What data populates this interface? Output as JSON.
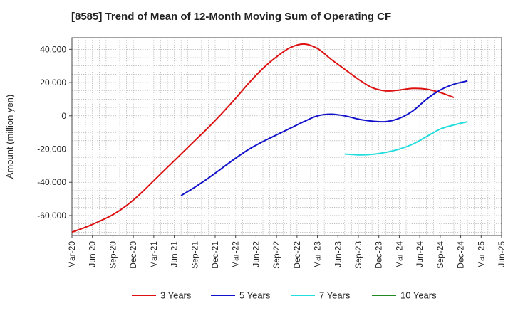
{
  "chart_data": {
    "type": "line",
    "title": "[8585]  Trend of Mean of 12-Month Moving Sum of Operating CF",
    "xlabel": "",
    "ylabel": "Amount (million yen)",
    "ylim": [
      -72000,
      47000
    ],
    "yticks": [
      40000,
      20000,
      0,
      -20000,
      -40000,
      -60000
    ],
    "ytick_labels": [
      "40,000",
      "20,000",
      "0",
      "-20,000",
      "-40,000",
      "-60,000"
    ],
    "x_tick_labels": [
      "Mar-20",
      "Jun-20",
      "Sep-20",
      "Dec-20",
      "Mar-21",
      "Jun-21",
      "Sep-21",
      "Dec-21",
      "Mar-22",
      "Jun-22",
      "Sep-22",
      "Dec-22",
      "Mar-23",
      "Jun-23",
      "Sep-23",
      "Dec-23",
      "Mar-24",
      "Jun-24",
      "Sep-24",
      "Dec-24",
      "Mar-25",
      "Jun-25"
    ],
    "grid": true,
    "legend_position": "bottom",
    "series": [
      {
        "name": "3 Years",
        "color": "#dd1111",
        "points": [
          [
            0,
            -70000
          ],
          [
            1,
            -67000
          ],
          [
            2,
            -63500
          ],
          [
            3,
            -59500
          ],
          [
            4,
            -54000
          ],
          [
            5,
            -47000
          ],
          [
            6,
            -39000
          ],
          [
            7,
            -31000
          ],
          [
            8,
            -23000
          ],
          [
            9,
            -15000
          ],
          [
            10,
            -7000
          ],
          [
            11,
            1500
          ],
          [
            12,
            10500
          ],
          [
            13,
            20000
          ],
          [
            14,
            28500
          ],
          [
            15,
            35500
          ],
          [
            16,
            41000
          ],
          [
            17,
            43200
          ],
          [
            18,
            40500
          ],
          [
            19,
            34000
          ],
          [
            20,
            28000
          ],
          [
            21,
            22000
          ],
          [
            22,
            17000
          ],
          [
            23,
            15000
          ],
          [
            24,
            15500
          ],
          [
            25,
            16500
          ],
          [
            26,
            16000
          ],
          [
            27,
            14000
          ],
          [
            28,
            11000
          ]
        ]
      },
      {
        "name": "5 Years",
        "color": "#1111cc",
        "points": [
          [
            8,
            -48000
          ],
          [
            9,
            -43000
          ],
          [
            10,
            -37500
          ],
          [
            11,
            -31500
          ],
          [
            12,
            -25500
          ],
          [
            13,
            -20000
          ],
          [
            14,
            -15500
          ],
          [
            15,
            -11500
          ],
          [
            16,
            -7500
          ],
          [
            17,
            -3500
          ],
          [
            18,
            0
          ],
          [
            19,
            1000
          ],
          [
            20,
            0
          ],
          [
            21,
            -2000
          ],
          [
            22,
            -3200
          ],
          [
            23,
            -3500
          ],
          [
            24,
            -1500
          ],
          [
            25,
            3000
          ],
          [
            26,
            10000
          ],
          [
            27,
            15500
          ],
          [
            28,
            19000
          ],
          [
            29,
            21000
          ]
        ]
      },
      {
        "name": "7 Years",
        "color": "#22dddd",
        "points": [
          [
            20,
            -23000
          ],
          [
            21,
            -23500
          ],
          [
            22,
            -23200
          ],
          [
            23,
            -22000
          ],
          [
            24,
            -20000
          ],
          [
            25,
            -17000
          ],
          [
            26,
            -12500
          ],
          [
            27,
            -8000
          ],
          [
            28,
            -5500
          ],
          [
            29,
            -3500
          ]
        ]
      },
      {
        "name": "10 Years",
        "color": "#228822",
        "points": []
      }
    ]
  }
}
